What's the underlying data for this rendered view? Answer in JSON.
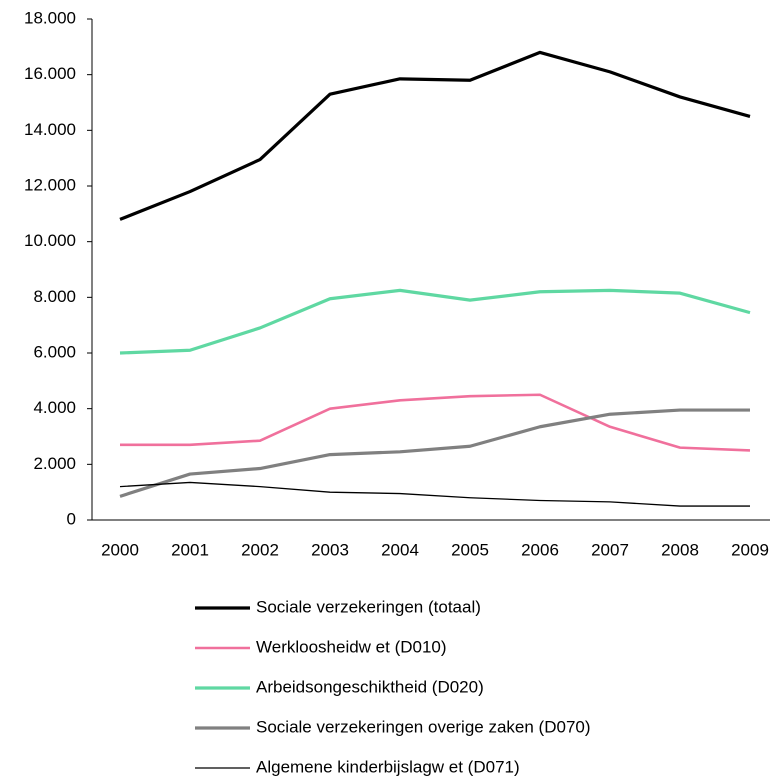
{
  "chart_data": {
    "type": "line",
    "categories": [
      "2000",
      "2001",
      "2002",
      "2003",
      "2004",
      "2005",
      "2006",
      "2007",
      "2008",
      "2009"
    ],
    "ylim": [
      0,
      18000
    ],
    "yticks": [
      0,
      {
        "value": 2000,
        "label": "2.000"
      },
      {
        "value": 4000,
        "label": "4.000"
      },
      {
        "value": 6000,
        "label": "6.000"
      },
      {
        "value": 8000,
        "label": "8.000"
      },
      {
        "value": 10000,
        "label": "10.000"
      },
      {
        "value": 12000,
        "label": "12.000"
      },
      {
        "value": 14000,
        "label": "14.000"
      },
      {
        "value": 16000,
        "label": "16.000"
      },
      {
        "value": 18000,
        "label": "18.000"
      }
    ],
    "grid": false,
    "legend": "bottom",
    "series": [
      {
        "name": "Sociale verzekeringen (totaal)",
        "color": "#000000",
        "line_width": 3.2,
        "values": [
          10800,
          11800,
          12950,
          15300,
          15850,
          15800,
          16800,
          16100,
          15200,
          14500
        ]
      },
      {
        "name": "Werkloosheidw et (D010)",
        "color": "#f0709c",
        "line_width": 2.6,
        "values": [
          2700,
          2700,
          2850,
          4000,
          4300,
          4450,
          4500,
          3350,
          2600,
          2500
        ]
      },
      {
        "name": "Arbeidsongeschiktheid (D020)",
        "color": "#5fd8a2",
        "line_width": 3.2,
        "values": [
          6000,
          6100,
          6900,
          7950,
          8250,
          7900,
          8200,
          8250,
          8150,
          7450
        ]
      },
      {
        "name": "Sociale verzekeringen overige zaken (D070)",
        "color": "#808080",
        "line_width": 3.2,
        "values": [
          850,
          1650,
          1850,
          2350,
          2450,
          2650,
          3350,
          3800,
          3950,
          3950
        ]
      },
      {
        "name": "Algemene kinderbijslagw et (D071)",
        "color": "#000000",
        "line_width": 1.3,
        "values": [
          1200,
          1350,
          1200,
          1000,
          950,
          800,
          700,
          650,
          500,
          500
        ]
      }
    ]
  }
}
